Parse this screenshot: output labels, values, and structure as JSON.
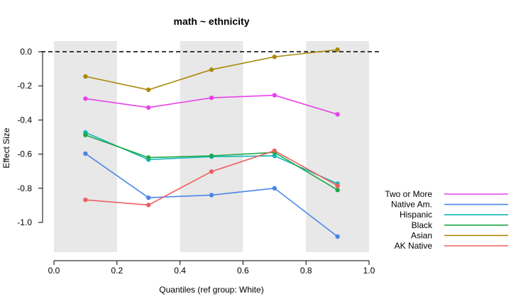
{
  "chart_data": {
    "type": "line",
    "title": "math ~ ethnicity",
    "xlabel": "Quantiles (ref group: White)",
    "ylabel": "Effect Size",
    "xlim": [
      0.0,
      1.0
    ],
    "ylim": [
      -1.17,
      0.06
    ],
    "x_ticks": [
      {
        "value": 0.0,
        "label": "0.0"
      },
      {
        "value": 0.2,
        "label": "0.2"
      },
      {
        "value": 0.4,
        "label": "0.4"
      },
      {
        "value": 0.6,
        "label": "0.6"
      },
      {
        "value": 0.8,
        "label": "0.8"
      },
      {
        "value": 1.0,
        "label": "1.0"
      }
    ],
    "y_ticks": [
      {
        "value": 0.0,
        "label": "0.0"
      },
      {
        "value": -0.2,
        "label": "-0.2"
      },
      {
        "value": -0.4,
        "label": "-0.4"
      },
      {
        "value": -0.6,
        "label": "-0.6"
      },
      {
        "value": -0.8,
        "label": "-0.8"
      },
      {
        "value": -1.0,
        "label": "-1.0"
      }
    ],
    "background_bands": [
      [
        0.0,
        0.2
      ],
      [
        0.4,
        0.6
      ],
      [
        0.8,
        1.0
      ]
    ],
    "band_color": "#e8e8e8",
    "reference_line": {
      "y": 0.0,
      "style": "dashed",
      "color": "#000000"
    },
    "legend_position": "right",
    "x": [
      0.1,
      0.3,
      0.5,
      0.7,
      0.9
    ],
    "series": [
      {
        "name": "Two or More",
        "color": "#e842e8",
        "values": [
          -0.275,
          -0.327,
          -0.27,
          -0.255,
          -0.367
        ]
      },
      {
        "name": "Native Am.",
        "color": "#4a86e8",
        "values": [
          -0.597,
          -0.855,
          -0.84,
          -0.8,
          -1.083
        ]
      },
      {
        "name": "Hispanic",
        "color": "#11b8b8",
        "values": [
          -0.473,
          -0.632,
          -0.615,
          -0.61,
          -0.773
        ]
      },
      {
        "name": "Black",
        "color": "#1fa847",
        "values": [
          -0.488,
          -0.62,
          -0.61,
          -0.59,
          -0.81
        ]
      },
      {
        "name": "Asian",
        "color": "#aa8a0a",
        "values": [
          -0.145,
          -0.223,
          -0.105,
          -0.03,
          0.012
        ]
      },
      {
        "name": "AK Native",
        "color": "#ee5e5e",
        "values": [
          -0.868,
          -0.898,
          -0.702,
          -0.58,
          -0.785
        ]
      }
    ]
  }
}
